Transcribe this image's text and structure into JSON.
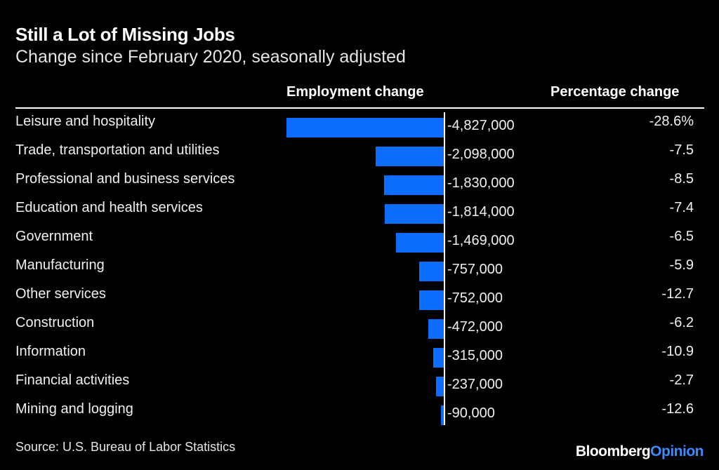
{
  "header": {
    "title": "Still a Lot of Missing Jobs",
    "subtitle": "Change since February 2020, seasonally adjusted",
    "col_employment": "Employment change",
    "col_percentage": "Percentage change"
  },
  "footer": {
    "source": "Source: U.S. Bureau of Labor Statistics",
    "logo_brand": "Bloomberg",
    "logo_section": "Opinion"
  },
  "colors": {
    "background": "#000000",
    "bar": "#0d6efd",
    "text": "#ffffff",
    "logo_accent": "#3d8bff"
  },
  "chart_data": {
    "type": "bar",
    "orientation": "horizontal",
    "title": "Still a Lot of Missing Jobs",
    "subtitle": "Change since February 2020, seasonally adjusted",
    "categories": [
      "Leisure and hospitality",
      "Trade, transportation and utilities",
      "Professional and business services",
      "Education and health services",
      "Government",
      "Manufacturing",
      "Other services",
      "Construction",
      "Information",
      "Financial activities",
      "Mining and logging"
    ],
    "series": [
      {
        "name": "Employment change",
        "values": [
          -4827000,
          -2098000,
          -1830000,
          -1814000,
          -1469000,
          -757000,
          -752000,
          -472000,
          -315000,
          -237000,
          -90000
        ],
        "labels": [
          "-4,827,000",
          "-2,098,000",
          "-1,830,000",
          "-1,814,000",
          "-1,469,000",
          "-757,000",
          "-752,000",
          "-472,000",
          "-315,000",
          "-237,000",
          "-90,000"
        ]
      },
      {
        "name": "Percentage change",
        "values": [
          -28.6,
          -7.5,
          -8.5,
          -7.4,
          -6.5,
          -5.9,
          -12.7,
          -6.2,
          -10.9,
          -2.7,
          -12.6
        ],
        "labels": [
          "-28.6%",
          "-7.5",
          "-8.5",
          "-7.4",
          "-6.5",
          "-5.9",
          "-12.7",
          "-6.2",
          "-10.9",
          "-2.7",
          "-12.6"
        ]
      }
    ],
    "xlim": [
      -4827000,
      0
    ],
    "grid": false,
    "legend": "none"
  }
}
